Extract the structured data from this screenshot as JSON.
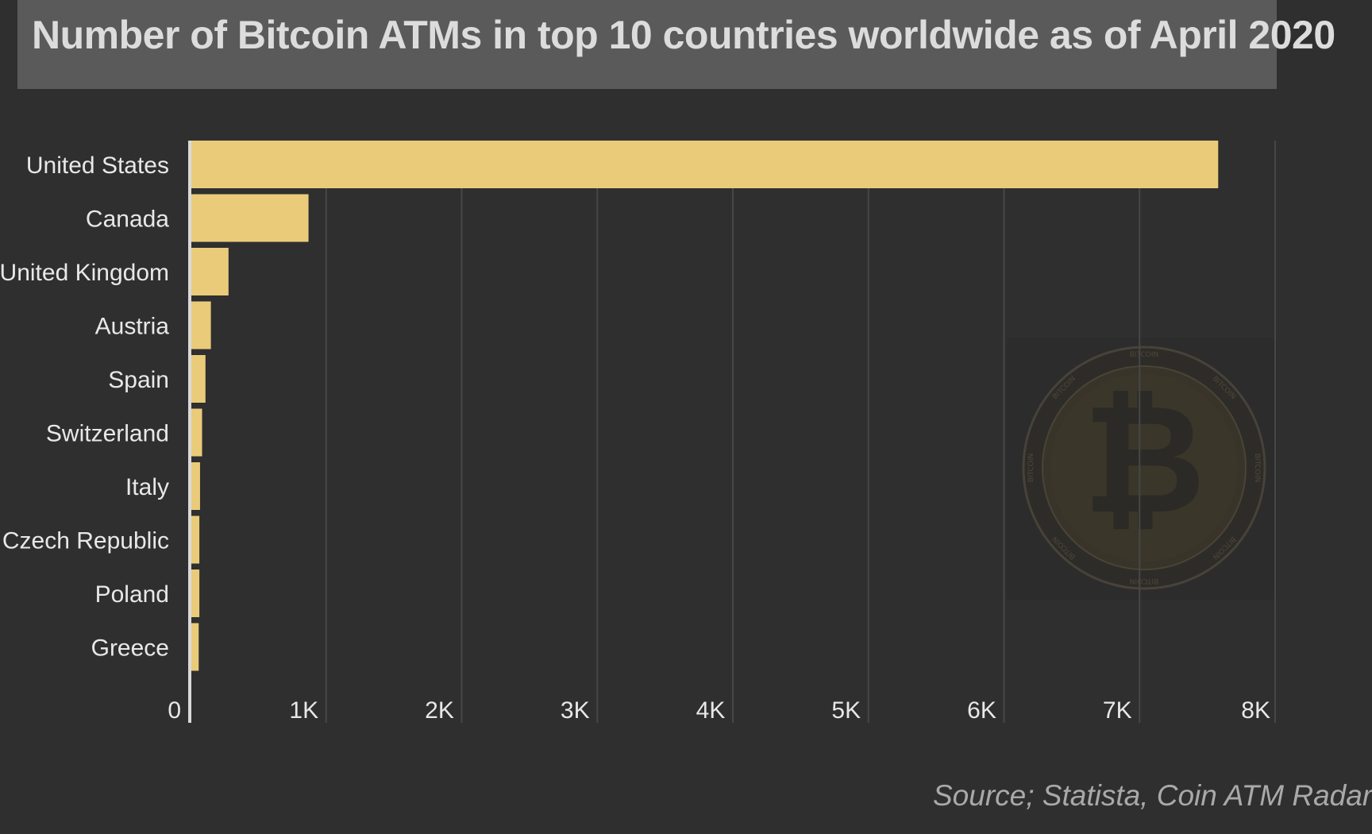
{
  "title": "Number of Bitcoin ATMs in top 10 countries worldwide as of April 2020",
  "source": "Source; Statista, Coin ATM Radar",
  "colors": {
    "background": "#2f2f2f",
    "title_bar": "#5a5a5a",
    "bar": "#eacb7a",
    "gridline": "#474747",
    "axis_line": "#d9d9d9",
    "label_text": "#e8e8e8",
    "tick_text": "#e8e8e8"
  },
  "watermark": {
    "icon": "bitcoin-coin-icon",
    "ring_text": "BITCOIN"
  },
  "chart_data": {
    "type": "bar",
    "orientation": "horizontal",
    "title": "Number of Bitcoin ATMs in top 10 countries worldwide as of April 2020",
    "xlabel": "",
    "ylabel": "",
    "categories": [
      "United States",
      "Canada",
      "United Kingdom",
      "Austria",
      "Spain",
      "Switzerland",
      "Italy",
      "Czech Republic",
      "Poland",
      "Greece"
    ],
    "values": [
      7580,
      870,
      280,
      150,
      110,
      85,
      70,
      65,
      65,
      60
    ],
    "xlim": [
      0,
      8000
    ],
    "ticks": [
      0,
      1000,
      2000,
      3000,
      4000,
      5000,
      6000,
      7000,
      8000
    ],
    "tick_labels": [
      "0",
      "1K",
      "2K",
      "3K",
      "4K",
      "5K",
      "6K",
      "7K",
      "8K"
    ],
    "grid": "vertical",
    "legend": "none"
  }
}
